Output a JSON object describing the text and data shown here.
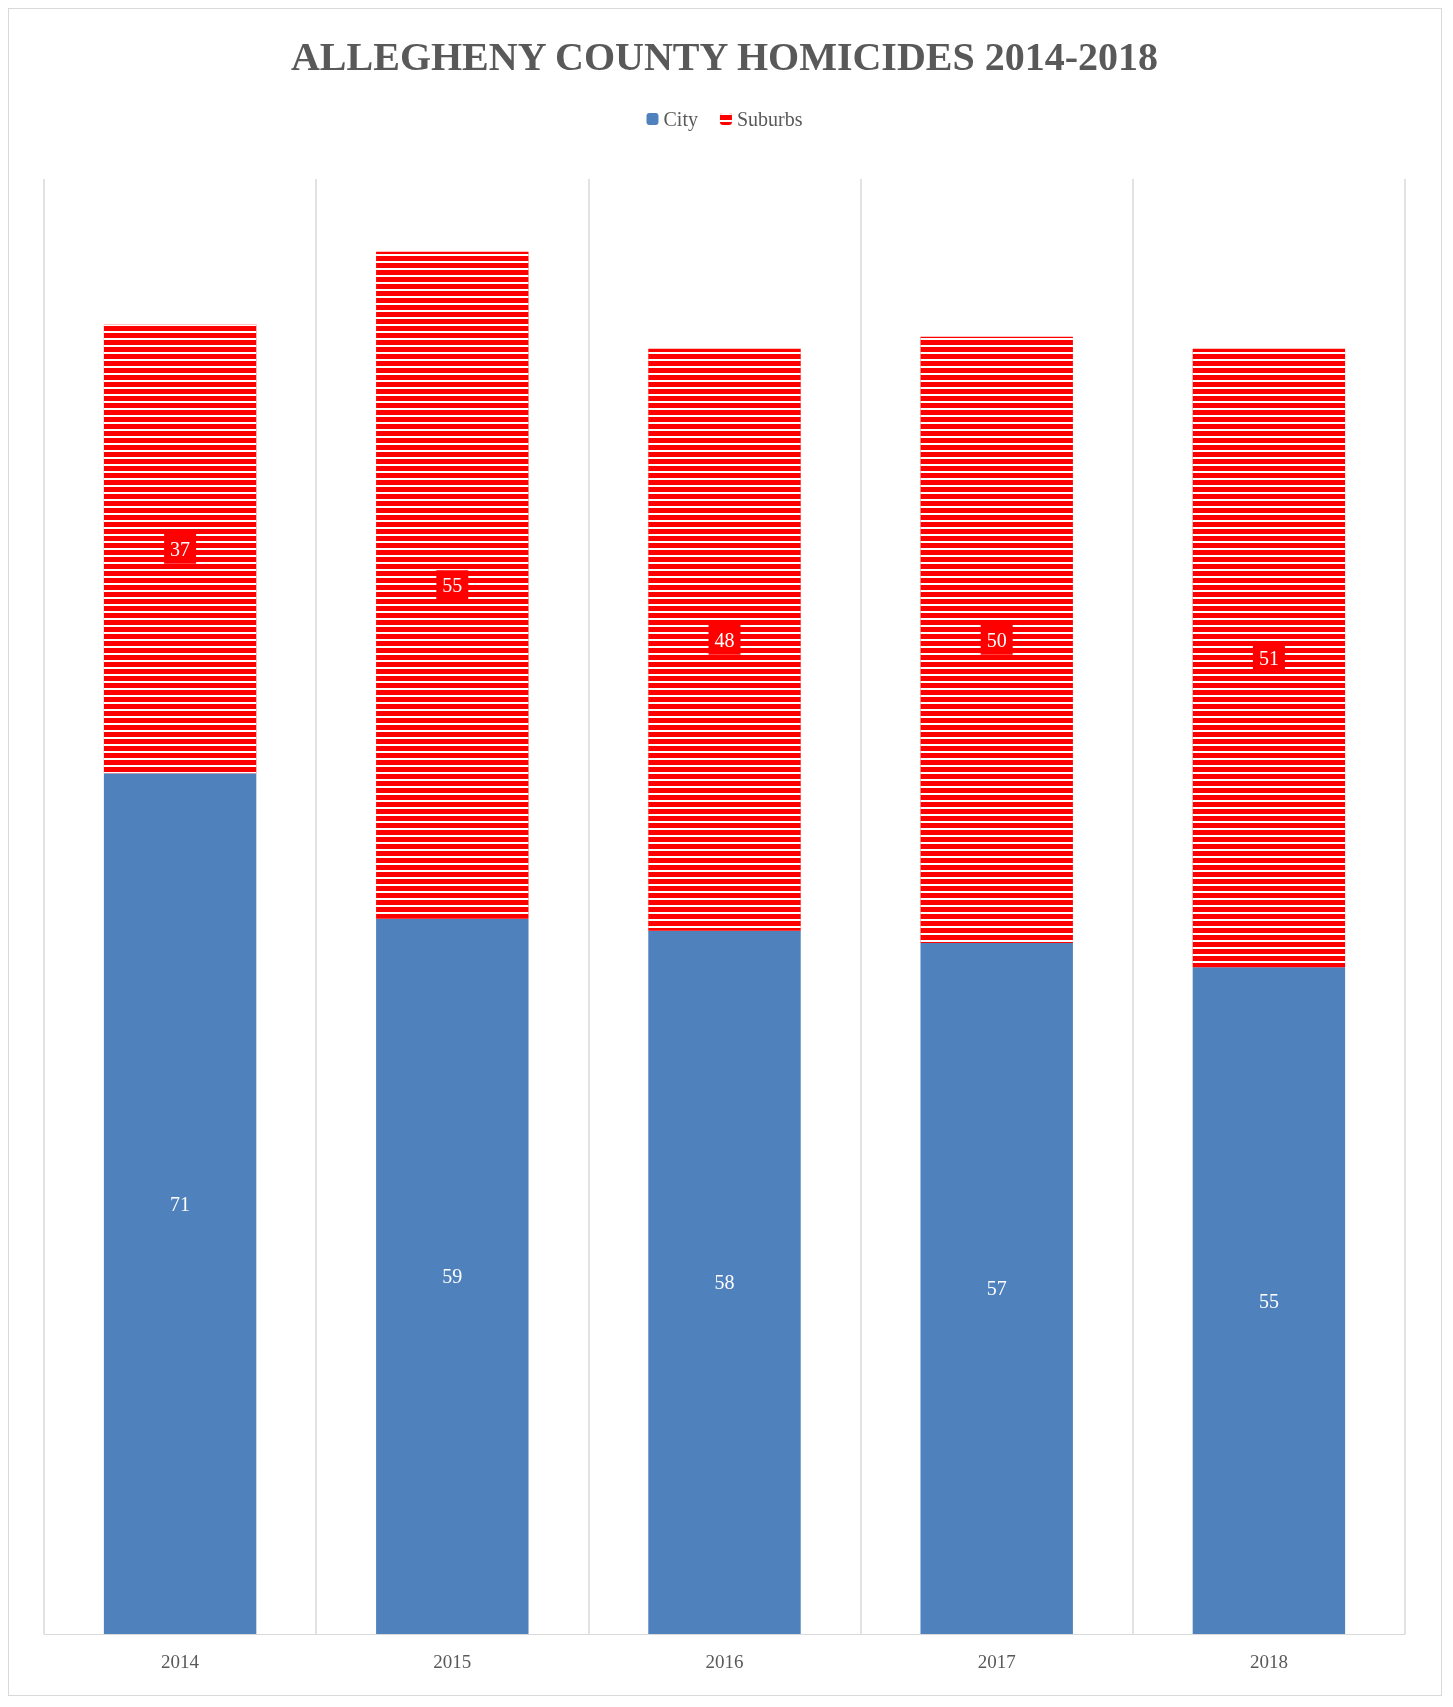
{
  "chart_data": {
    "type": "bar",
    "title": "ALLEGHENY COUNTY HOMICIDES 2014-2018",
    "categories": [
      "2014",
      "2015",
      "2016",
      "2017",
      "2018"
    ],
    "stacked": true,
    "data_labels": true,
    "legend": "top",
    "grid": "x",
    "series": [
      {
        "name": "City",
        "color": "#4f81bd",
        "values": [
          71,
          59,
          58,
          57,
          55
        ]
      },
      {
        "name": "Suburbs",
        "color": "#ff0000",
        "values": [
          37,
          55,
          48,
          50,
          51
        ]
      }
    ]
  }
}
